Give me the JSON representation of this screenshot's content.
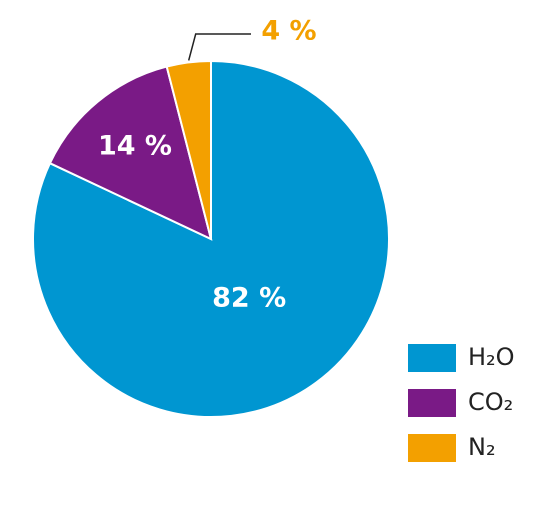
{
  "chart_data": {
    "type": "pie",
    "categories": [
      "H₂O",
      "CO₂",
      "N₂"
    ],
    "values": [
      82,
      14,
      4
    ],
    "value_labels": [
      "82 %",
      "14 %",
      "4 %"
    ],
    "colors": [
      "#0096d1",
      "#7a1a86",
      "#f3a000"
    ],
    "legend": "bottom-right"
  }
}
